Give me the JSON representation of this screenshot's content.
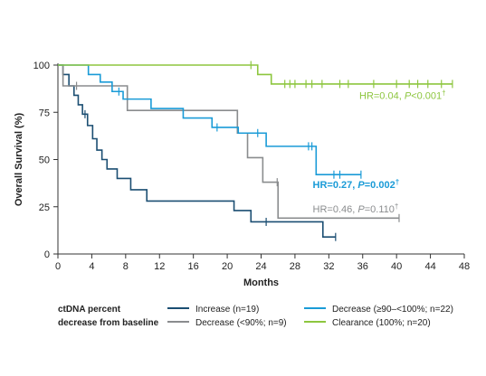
{
  "chart_data": {
    "type": "line",
    "subtype": "kaplan-meier",
    "title": "",
    "xlabel": "Months",
    "ylabel": "Overall Survival (%)",
    "xlim": [
      0,
      48
    ],
    "ylim": [
      0,
      100
    ],
    "xticks": [
      0,
      4,
      8,
      12,
      16,
      20,
      24,
      28,
      32,
      36,
      40,
      44,
      48
    ],
    "yticks": [
      0,
      25,
      50,
      75,
      100
    ],
    "grid": false,
    "legend": {
      "placement": "bottom",
      "title": [
        "ctDNA percent",
        "decrease from baseline"
      ]
    },
    "series": [
      {
        "name": "Increase (n=19)",
        "color": "#1b4e72",
        "steps": [
          [
            0,
            100
          ],
          [
            0.6,
            95
          ],
          [
            1.3,
            89
          ],
          [
            1.9,
            84
          ],
          [
            2.4,
            79
          ],
          [
            2.9,
            74
          ],
          [
            3.5,
            68
          ],
          [
            4.1,
            61
          ],
          [
            4.6,
            55
          ],
          [
            5.2,
            50
          ],
          [
            5.8,
            45
          ],
          [
            7.0,
            40
          ],
          [
            8.6,
            34
          ],
          [
            10.5,
            28
          ],
          [
            20.8,
            23
          ],
          [
            22.8,
            17
          ],
          [
            31.3,
            9
          ],
          [
            32.8,
            9
          ]
        ],
        "censor": [
          [
            3.2,
            74
          ],
          [
            24.6,
            17
          ],
          [
            32.8,
            9
          ]
        ]
      },
      {
        "name": "Decrease (<90%; n=9)",
        "color": "#8a8c8e",
        "steps": [
          [
            0,
            100
          ],
          [
            0.6,
            89
          ],
          [
            8.2,
            76
          ],
          [
            21.2,
            64
          ],
          [
            22.4,
            51
          ],
          [
            24.2,
            38
          ],
          [
            26.0,
            19
          ],
          [
            40.3,
            19
          ]
        ],
        "censor": [
          [
            2.2,
            89
          ],
          [
            25.9,
            38
          ],
          [
            40.3,
            19
          ]
        ]
      },
      {
        "name": "Decrease (≥90–<100%; n=22)",
        "color": "#1a9bd7",
        "steps": [
          [
            0,
            100
          ],
          [
            3.6,
            95
          ],
          [
            5.0,
            91
          ],
          [
            6.4,
            86
          ],
          [
            7.7,
            82
          ],
          [
            11.0,
            77
          ],
          [
            14.8,
            72
          ],
          [
            18.2,
            67
          ],
          [
            21.3,
            64
          ],
          [
            24.6,
            57
          ],
          [
            30.5,
            42
          ],
          [
            35.8,
            42
          ]
        ],
        "censor": [
          [
            7.2,
            86
          ],
          [
            18.8,
            67
          ],
          [
            23.6,
            64
          ],
          [
            29.6,
            57
          ],
          [
            30.0,
            57
          ],
          [
            32.6,
            42
          ],
          [
            33.3,
            42
          ],
          [
            35.8,
            42
          ]
        ]
      },
      {
        "name": "Clearance (100%; n=20)",
        "color": "#8dc63f",
        "steps": [
          [
            0,
            100
          ],
          [
            23.6,
            95
          ],
          [
            25.2,
            90
          ],
          [
            46.6,
            90
          ]
        ],
        "censor": [
          [
            22.8,
            100
          ],
          [
            26.8,
            90
          ],
          [
            27.4,
            90
          ],
          [
            28.0,
            90
          ],
          [
            29.3,
            90
          ],
          [
            30.0,
            90
          ],
          [
            31.2,
            90
          ],
          [
            33.3,
            90
          ],
          [
            34.3,
            90
          ],
          [
            37.3,
            90
          ],
          [
            40.0,
            90
          ],
          [
            41.5,
            90
          ],
          [
            42.5,
            90
          ],
          [
            43.7,
            90
          ],
          [
            45.3,
            90
          ],
          [
            46.6,
            90
          ]
        ]
      }
    ],
    "annotations": [
      {
        "series": 3,
        "x": 35.6,
        "y": 82,
        "color": "#8dc63f",
        "weight": "normal",
        "prefix": "HR=0.04, ",
        "pvar": "P",
        "pval": "<0.001",
        "mark": "†"
      },
      {
        "series": 2,
        "x": 30.1,
        "y": 35,
        "color": "#1a9bd7",
        "weight": "bold",
        "prefix": "HR=0.27, ",
        "pvar": "P",
        "pval": "=0.002",
        "mark": "†"
      },
      {
        "series": 1,
        "x": 30.1,
        "y": 22,
        "color": "#8a8c8e",
        "weight": "normal",
        "prefix": "HR=0.46, ",
        "pvar": "P",
        "pval": "=0.110",
        "mark": "†"
      }
    ]
  }
}
